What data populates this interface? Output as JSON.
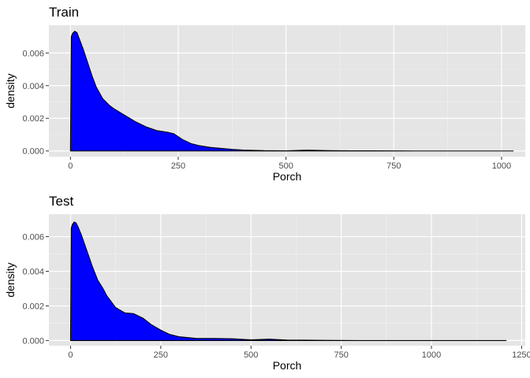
{
  "chart_data": [
    {
      "type": "area",
      "title": "Train",
      "xlabel": "Porch",
      "ylabel": "density",
      "xlim": [
        -50,
        1055
      ],
      "ylim": [
        -0.00035,
        0.0077
      ],
      "xticks": [
        0,
        250,
        500,
        750,
        1000
      ],
      "yticks": [
        0.0,
        0.002,
        0.004,
        0.006
      ],
      "ytick_labels": [
        "0.000",
        "0.002",
        "0.004",
        "0.006"
      ],
      "xtick_labels": [
        "0",
        "250",
        "500",
        "750",
        "1000"
      ],
      "grid": true,
      "fill_color": "#0000ff",
      "line_color": "#000000",
      "x": [
        0,
        2,
        5,
        10,
        15,
        20,
        30,
        40,
        50,
        60,
        75,
        90,
        100,
        125,
        150,
        175,
        200,
        225,
        240,
        260,
        280,
        300,
        325,
        350,
        375,
        400,
        425,
        450,
        500,
        550,
        600,
        650,
        700,
        800,
        900,
        1000,
        1027
      ],
      "values": [
        0,
        0.007,
        0.0072,
        0.00733,
        0.00725,
        0.0069,
        0.0062,
        0.0054,
        0.0046,
        0.0039,
        0.0032,
        0.0028,
        0.0026,
        0.0022,
        0.0018,
        0.00148,
        0.00125,
        0.00115,
        0.00105,
        0.0007,
        0.00045,
        0.00032,
        0.00022,
        0.00016,
        0.0001,
        6e-05,
        4e-05,
        2e-05,
        1e-05,
        5e-05,
        2e-05,
        1e-05,
        1e-05,
        0.0,
        0.0,
        0.0,
        0.0
      ]
    },
    {
      "type": "area",
      "title": "Test",
      "xlabel": "Porch",
      "ylabel": "density",
      "xlim": [
        -60,
        1260
      ],
      "ylim": [
        -0.0003,
        0.0073
      ],
      "xticks": [
        0,
        250,
        500,
        750,
        1000,
        1250
      ],
      "yticks": [
        0.0,
        0.002,
        0.004,
        0.006
      ],
      "ytick_labels": [
        "0.000",
        "0.002",
        "0.004",
        "0.006"
      ],
      "xtick_labels": [
        "0",
        "250",
        "500",
        "750",
        "1000",
        "1250"
      ],
      "grid": true,
      "fill_color": "#0000ff",
      "line_color": "#000000",
      "x": [
        0,
        2,
        5,
        10,
        15,
        20,
        30,
        40,
        50,
        60,
        75,
        90,
        100,
        125,
        150,
        175,
        200,
        225,
        250,
        275,
        300,
        350,
        400,
        450,
        500,
        550,
        600,
        650,
        700,
        800,
        900,
        1000,
        1100,
        1207
      ],
      "values": [
        0,
        0.0065,
        0.0067,
        0.00685,
        0.0068,
        0.0066,
        0.0061,
        0.0055,
        0.0049,
        0.0043,
        0.0035,
        0.003,
        0.0026,
        0.0019,
        0.0016,
        0.00155,
        0.0013,
        0.0009,
        0.0006,
        0.00035,
        0.00022,
        0.00012,
        0.00012,
        0.0001,
        4e-05,
        8e-05,
        3e-05,
        2e-05,
        1e-05,
        0.0,
        0.0,
        0.0,
        0.0,
        0.0
      ]
    }
  ]
}
